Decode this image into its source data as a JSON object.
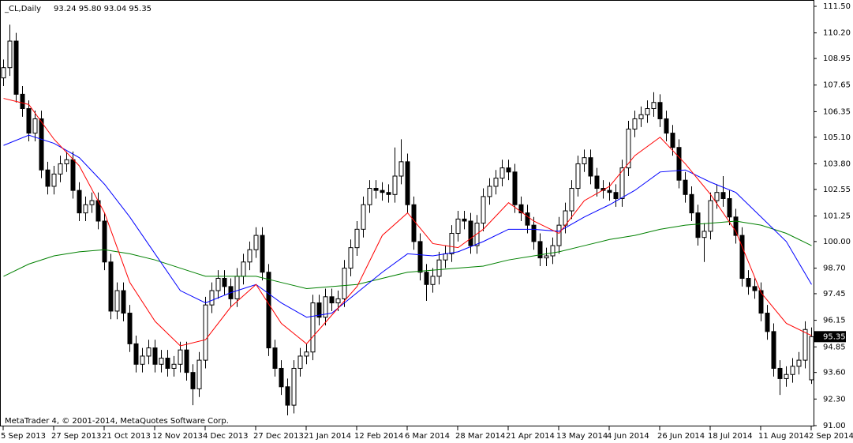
{
  "chart_data": {
    "type": "candlestick",
    "title": "_CL,Daily",
    "ohlc_text": "93.24 95.80 93.04 95.35",
    "footer": "MetaTrader 4, © 2001-2014, MetaQuotes Software Corp.",
    "up_color": "#ffffff",
    "down_color": "#000000",
    "wick_color": "#000000",
    "ylim": [
      91.0,
      111.5
    ],
    "yticks": [
      {
        "value": 111.5,
        "label": "111.50"
      },
      {
        "value": 110.2,
        "label": "110.20"
      },
      {
        "value": 108.95,
        "label": "108.95"
      },
      {
        "value": 107.65,
        "label": "107.65"
      },
      {
        "value": 106.35,
        "label": "106.35"
      },
      {
        "value": 105.1,
        "label": "105.10"
      },
      {
        "value": 103.8,
        "label": "103.80"
      },
      {
        "value": 102.55,
        "label": "102.55"
      },
      {
        "value": 101.25,
        "label": "101.25"
      },
      {
        "value": 100.0,
        "label": "100.00"
      },
      {
        "value": 98.7,
        "label": "98.70"
      },
      {
        "value": 97.45,
        "label": "97.45"
      },
      {
        "value": 96.15,
        "label": "96.15"
      },
      {
        "value": 94.85,
        "label": "94.85"
      },
      {
        "value": 93.6,
        "label": "93.60"
      },
      {
        "value": 92.3,
        "label": "92.30"
      },
      {
        "value": 91.0,
        "label": "91.00"
      }
    ],
    "last_price": {
      "value": 95.35,
      "label": "95.35"
    },
    "categories": [
      "5 Sep 2013",
      null,
      null,
      null,
      null,
      null,
      null,
      null,
      "27 Sep 2013",
      null,
      null,
      null,
      null,
      null,
      null,
      null,
      "21 Oct 2013",
      null,
      null,
      null,
      null,
      null,
      null,
      null,
      "12 Nov 2013",
      null,
      null,
      null,
      null,
      null,
      null,
      null,
      "4 Dec 2013",
      null,
      null,
      null,
      null,
      null,
      null,
      null,
      "27 Dec 2013",
      null,
      null,
      null,
      null,
      null,
      null,
      null,
      "21 Jan 2014",
      null,
      null,
      null,
      null,
      null,
      null,
      null,
      "12 Feb 2014",
      null,
      null,
      null,
      null,
      null,
      null,
      null,
      "6 Mar 2014",
      null,
      null,
      null,
      null,
      null,
      null,
      null,
      "28 Mar 2014",
      null,
      null,
      null,
      null,
      null,
      null,
      null,
      "21 Apr 2014",
      null,
      null,
      null,
      null,
      null,
      null,
      null,
      "13 May 2014",
      null,
      null,
      null,
      null,
      null,
      null,
      null,
      "4 Jun 2014",
      null,
      null,
      null,
      null,
      null,
      null,
      null,
      "26 Jun 2014",
      null,
      null,
      null,
      null,
      null,
      null,
      null,
      "18 Jul 2014",
      null,
      null,
      null,
      null,
      null,
      null,
      null,
      "11 Aug 2014",
      null,
      null,
      null,
      null,
      null,
      null,
      null,
      "2 Sep 2014"
    ],
    "open": [
      108.0,
      108.5,
      109.8,
      107.2,
      106.5,
      105.3,
      106.0,
      103.5,
      102.7,
      103.3,
      103.8,
      104.0,
      102.5,
      101.4,
      101.8,
      102.0,
      101.0,
      99.0,
      96.6,
      97.6,
      96.5,
      95.0,
      94.0,
      94.4,
      94.8,
      94.0,
      94.3,
      93.8,
      94.0,
      94.7,
      93.6,
      92.8,
      94.2,
      96.9,
      97.6,
      98.2,
      97.8,
      97.2,
      98.3,
      99.0,
      99.6,
      100.3,
      98.5,
      94.8,
      93.8,
      92.9,
      92.0,
      93.8,
      94.4,
      94.6,
      97.0,
      96.3,
      97.3,
      97.0,
      97.2,
      98.7,
      99.7,
      100.6,
      101.8,
      102.6,
      102.5,
      102.4,
      102.3,
      103.2,
      103.9,
      101.8,
      100.0,
      98.5,
      97.9,
      98.3,
      99.1,
      99.4,
      100.4,
      101.1,
      101.0,
      99.8,
      100.9,
      102.2,
      102.7,
      103.1,
      103.6,
      103.4,
      101.8,
      101.4,
      100.8,
      100.0,
      99.2,
      99.3,
      99.8,
      100.8,
      101.5,
      102.6,
      103.8,
      104.1,
      103.2,
      102.6,
      102.5,
      102.4,
      102.1,
      103.6,
      105.5,
      106.0,
      106.2,
      106.5,
      106.8,
      106.0,
      105.3,
      104.6,
      103.0,
      102.3,
      101.4,
      100.2,
      100.5,
      102.0,
      102.4,
      102.1,
      101.2,
      100.3,
      98.2,
      97.8,
      97.6,
      96.5,
      95.6,
      93.8,
      93.3,
      93.5,
      93.9,
      94.2,
      93.24
    ],
    "high": [
      108.9,
      110.6,
      110.2,
      107.6,
      106.9,
      106.4,
      106.4,
      103.9,
      103.7,
      104.2,
      104.4,
      104.4,
      102.9,
      102.2,
      102.4,
      102.4,
      101.4,
      99.4,
      98.0,
      98.0,
      96.9,
      95.4,
      94.8,
      95.2,
      95.2,
      94.7,
      94.7,
      94.4,
      95.1,
      95.1,
      94.0,
      94.6,
      97.3,
      98.0,
      98.6,
      98.6,
      98.2,
      98.7,
      99.4,
      100.0,
      100.7,
      100.7,
      98.9,
      95.2,
      94.2,
      93.3,
      94.2,
      94.8,
      95.0,
      97.4,
      97.4,
      97.7,
      97.7,
      97.6,
      99.1,
      100.1,
      101.0,
      102.2,
      103.0,
      103.0,
      102.9,
      102.8,
      104.6,
      105.0,
      104.3,
      102.2,
      100.4,
      98.9,
      98.7,
      99.5,
      99.8,
      100.8,
      101.5,
      101.5,
      101.4,
      101.3,
      102.6,
      103.1,
      103.5,
      104.0,
      104.0,
      103.8,
      102.2,
      101.8,
      101.2,
      100.4,
      99.7,
      100.2,
      101.2,
      101.9,
      103.0,
      104.2,
      104.5,
      104.5,
      103.6,
      103.0,
      102.9,
      102.8,
      104.0,
      105.9,
      106.4,
      106.6,
      106.9,
      107.3,
      107.2,
      106.4,
      105.7,
      105.0,
      103.4,
      102.7,
      101.8,
      100.9,
      102.4,
      102.8,
      103.2,
      102.5,
      101.6,
      100.7,
      98.6,
      98.2,
      98.0,
      96.9,
      96.0,
      94.2,
      93.9,
      94.3,
      94.6,
      96.1,
      95.8
    ],
    "low": [
      107.6,
      108.1,
      106.8,
      106.1,
      104.9,
      104.9,
      103.1,
      102.3,
      102.3,
      102.9,
      103.4,
      102.1,
      101.0,
      101.0,
      101.4,
      100.6,
      98.6,
      96.2,
      96.2,
      96.1,
      94.6,
      93.6,
      93.6,
      94.0,
      93.6,
      93.6,
      93.4,
      93.4,
      93.6,
      93.2,
      92.0,
      92.4,
      93.8,
      96.5,
      97.2,
      97.4,
      96.8,
      96.8,
      97.9,
      98.6,
      99.2,
      98.1,
      94.4,
      93.4,
      92.5,
      91.5,
      91.6,
      93.4,
      94.0,
      94.2,
      95.9,
      95.9,
      96.6,
      96.6,
      96.8,
      98.3,
      99.3,
      100.2,
      101.4,
      102.1,
      102.0,
      101.9,
      101.9,
      102.8,
      101.4,
      99.6,
      98.1,
      97.1,
      97.5,
      97.9,
      98.7,
      99.0,
      100.0,
      100.6,
      99.4,
      99.4,
      100.5,
      101.8,
      102.3,
      102.7,
      103.0,
      101.4,
      101.0,
      100.4,
      99.6,
      98.8,
      98.8,
      98.9,
      99.4,
      100.4,
      101.1,
      102.2,
      103.4,
      102.8,
      102.2,
      102.1,
      102.0,
      101.7,
      101.7,
      103.2,
      105.1,
      105.6,
      105.8,
      106.1,
      105.6,
      104.9,
      104.2,
      102.6,
      101.9,
      101.0,
      99.8,
      99.0,
      100.1,
      101.6,
      101.7,
      100.8,
      99.9,
      97.8,
      97.4,
      97.2,
      96.1,
      95.2,
      93.4,
      92.5,
      92.9,
      93.1,
      93.5,
      93.8,
      93.04
    ],
    "close": [
      108.5,
      109.8,
      107.2,
      106.5,
      105.3,
      106.0,
      103.5,
      102.7,
      103.3,
      103.8,
      104.0,
      102.5,
      101.4,
      101.8,
      102.0,
      101.0,
      99.0,
      96.6,
      97.6,
      96.5,
      95.0,
      94.0,
      94.4,
      94.8,
      94.0,
      94.3,
      93.8,
      94.0,
      94.7,
      93.6,
      92.8,
      94.2,
      96.9,
      97.6,
      98.2,
      97.8,
      97.2,
      98.3,
      99.0,
      99.6,
      100.3,
      98.5,
      94.8,
      93.8,
      92.9,
      92.0,
      93.8,
      94.4,
      94.6,
      97.0,
      96.3,
      97.3,
      97.0,
      97.2,
      98.7,
      99.7,
      100.6,
      101.8,
      102.6,
      102.5,
      102.4,
      102.3,
      103.2,
      103.9,
      101.8,
      100.0,
      98.5,
      97.9,
      98.3,
      99.1,
      99.4,
      100.4,
      101.1,
      101.0,
      99.8,
      100.9,
      102.2,
      102.7,
      103.1,
      103.6,
      103.4,
      101.8,
      101.4,
      100.8,
      100.0,
      99.2,
      99.3,
      99.8,
      100.8,
      101.5,
      102.6,
      103.8,
      104.1,
      103.2,
      102.6,
      102.5,
      102.4,
      102.1,
      103.6,
      105.5,
      106.0,
      106.2,
      106.5,
      106.8,
      106.0,
      105.3,
      104.6,
      103.0,
      102.3,
      101.4,
      100.2,
      100.5,
      102.0,
      102.4,
      102.1,
      101.2,
      100.3,
      98.2,
      97.8,
      97.6,
      96.5,
      95.6,
      93.8,
      93.3,
      93.5,
      93.9,
      94.2,
      95.7,
      95.35
    ],
    "overlays": [
      {
        "color": "#008000",
        "x": [
          0,
          4,
          8,
          12,
          16,
          20,
          24,
          28,
          32,
          36,
          40,
          44,
          48,
          52,
          56,
          60,
          64,
          68,
          72,
          76,
          80,
          84,
          88,
          92,
          96,
          100,
          104,
          108,
          112,
          116,
          120,
          124,
          128
        ],
        "values": [
          98.3,
          98.9,
          99.3,
          99.5,
          99.6,
          99.4,
          99.1,
          98.7,
          98.3,
          98.3,
          98.3,
          98.0,
          97.7,
          97.8,
          97.9,
          98.2,
          98.5,
          98.6,
          98.7,
          98.8,
          99.1,
          99.3,
          99.5,
          99.8,
          100.1,
          100.3,
          100.6,
          100.8,
          100.9,
          101.0,
          100.8,
          100.4,
          99.8
        ]
      },
      {
        "color": "#0000ff",
        "x": [
          0,
          4,
          8,
          12,
          16,
          20,
          24,
          28,
          32,
          36,
          40,
          44,
          48,
          52,
          56,
          60,
          64,
          68,
          72,
          76,
          80,
          84,
          88,
          92,
          96,
          100,
          104,
          108,
          112,
          116,
          120,
          124,
          128
        ],
        "values": [
          104.7,
          105.2,
          104.8,
          104.1,
          102.8,
          101.2,
          99.4,
          97.6,
          97.0,
          97.5,
          97.9,
          97.0,
          96.3,
          96.5,
          97.5,
          98.5,
          99.4,
          99.3,
          99.5,
          100.0,
          100.6,
          100.6,
          100.5,
          101.2,
          101.8,
          102.5,
          103.4,
          103.5,
          102.9,
          102.4,
          101.2,
          100.0,
          97.9
        ]
      },
      {
        "color": "#ff0000",
        "x": [
          0,
          4,
          8,
          12,
          16,
          20,
          24,
          28,
          32,
          36,
          40,
          44,
          48,
          52,
          56,
          60,
          64,
          68,
          72,
          76,
          80,
          84,
          88,
          92,
          96,
          100,
          104,
          108,
          112,
          116,
          120,
          124,
          128
        ],
        "values": [
          107.0,
          106.7,
          105.0,
          103.7,
          101.4,
          98.0,
          96.1,
          94.9,
          95.2,
          96.8,
          97.9,
          96.0,
          95.0,
          96.4,
          97.8,
          100.3,
          101.4,
          99.9,
          99.7,
          100.6,
          101.9,
          101.0,
          100.4,
          102.0,
          102.7,
          104.2,
          105.1,
          103.8,
          102.3,
          100.5,
          97.5,
          96.0,
          95.4
        ]
      }
    ]
  }
}
